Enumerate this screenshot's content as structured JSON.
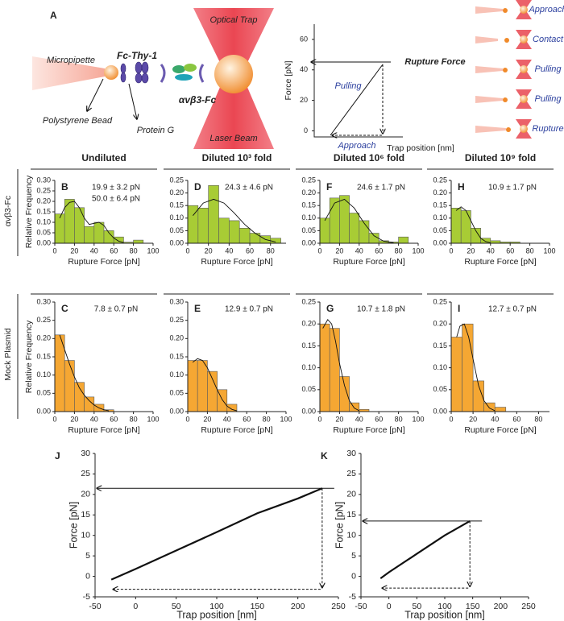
{
  "panel_a": {
    "label": "A",
    "micropipette": "Micropipette",
    "fc_thy": "Fc-Thy-1",
    "bead": "Polystyrene Bead",
    "protein_g": "Protein G",
    "integrin": "αvβ3-Fc",
    "trap": "Optical Trap",
    "laser": "Laser Beam",
    "plot": {
      "ylabel": "Force [pN]",
      "xlabel": "Trap position [nm]",
      "ylim": [
        -4,
        70
      ],
      "yticks": [
        0,
        20,
        40,
        60
      ],
      "rupture": "Rupture Force",
      "pulling": "Pulling",
      "approach": "Approach"
    },
    "steps": [
      "Approach",
      "Contact",
      "Pulling",
      "Pulling",
      "Rupture"
    ]
  },
  "column_headers": [
    "Undiluted",
    "Diluted 10³ fold",
    "Diluted 10⁶ fold",
    "Diluted 10⁹ fold"
  ],
  "row_labels": [
    "αvβ3-Fc",
    "Mock Plasmid"
  ],
  "chart_data": [
    {
      "type": "histogram",
      "label": "B",
      "annotations": [
        "19.9 ± 3.2 pN",
        "50.0 ± 6.4 pN"
      ],
      "color": "#a8cc35",
      "bins": [
        0,
        10,
        20,
        30,
        40,
        50,
        60,
        70,
        80,
        90
      ],
      "values": [
        0.14,
        0.21,
        0.17,
        0.08,
        0.1,
        0.06,
        0.03,
        0.005,
        0.015
      ],
      "fit": {
        "x": [
          5,
          10,
          15,
          20,
          25,
          30,
          35,
          40,
          45,
          50,
          55,
          60,
          65,
          70
        ],
        "y": [
          0.12,
          0.17,
          0.195,
          0.2,
          0.17,
          0.12,
          0.09,
          0.095,
          0.1,
          0.085,
          0.05,
          0.025,
          0.01,
          0.003
        ]
      },
      "xlim": [
        0,
        100
      ],
      "xticks": [
        0,
        20,
        40,
        60,
        80,
        100
      ],
      "ylim": [
        0,
        0.3
      ],
      "yticks": [
        {
          "value": 0,
          "label": "0.00"
        },
        0.05,
        {
          "value": 0.1,
          "label": "0.10"
        },
        0.15,
        {
          "value": 0.2,
          "label": "0.20"
        },
        0.25,
        {
          "value": 0.3,
          "label": "0.30"
        }
      ],
      "xlabel": "Rupture Force [pN]",
      "ylabel": "Relative Frequency"
    },
    {
      "type": "histogram",
      "label": "C",
      "annotations": [
        "7.8 ± 0.7 pN"
      ],
      "color": "#f5a733",
      "bins": [
        0,
        10,
        20,
        30,
        40,
        50,
        60
      ],
      "values": [
        0.21,
        0.14,
        0.08,
        0.04,
        0.02,
        0.005
      ],
      "fit": {
        "x": [
          5,
          10,
          15,
          20,
          25,
          30,
          35,
          40,
          45,
          50,
          55
        ],
        "y": [
          0.21,
          0.17,
          0.13,
          0.095,
          0.065,
          0.045,
          0.03,
          0.018,
          0.01,
          0.005,
          0.002
        ]
      },
      "xlim": [
        0,
        100
      ],
      "xticks": [
        0,
        20,
        40,
        60,
        80,
        100
      ],
      "ylim": [
        0,
        0.3
      ],
      "yticks": [
        {
          "value": 0,
          "label": "0.00"
        },
        0.05,
        {
          "value": 0.1,
          "label": "0.10"
        },
        0.15,
        {
          "value": 0.2,
          "label": "0.20"
        },
        0.25,
        {
          "value": 0.3,
          "label": "0.30"
        }
      ],
      "xlabel": "Rupture Force [pN]",
      "ylabel": "Relative Frequency"
    },
    {
      "type": "histogram",
      "label": "D",
      "annotations": [
        "24.3 ± 4.6 pN"
      ],
      "color": "#a8cc35",
      "bins": [
        0,
        10,
        20,
        30,
        40,
        50,
        60,
        70,
        80,
        90
      ],
      "values": [
        0.15,
        0.14,
        0.23,
        0.1,
        0.09,
        0.06,
        0.04,
        0.03,
        0.02
      ],
      "fit": {
        "x": [
          5,
          15,
          25,
          35,
          45,
          55,
          65,
          75,
          85
        ],
        "y": [
          0.11,
          0.16,
          0.175,
          0.16,
          0.12,
          0.075,
          0.04,
          0.015,
          0.005
        ]
      },
      "xlim": [
        0,
        95
      ],
      "xticks": [
        0,
        20,
        40,
        60,
        80
      ],
      "ylim": [
        0,
        0.25
      ],
      "yticks": [
        {
          "value": 0,
          "label": "0.00"
        },
        0.05,
        {
          "value": 0.1,
          "label": "0.10"
        },
        0.15,
        {
          "value": 0.2,
          "label": "0.20"
        },
        0.25
      ],
      "xlabel": "Rupture Force [pN]"
    },
    {
      "type": "histogram",
      "label": "E",
      "annotations": [
        "12.9 ± 0.7 pN"
      ],
      "color": "#f5a733",
      "bins": [
        0,
        10,
        20,
        30,
        40,
        50
      ],
      "values": [
        0.14,
        0.14,
        0.11,
        0.06,
        0.02
      ],
      "fit": {
        "x": [
          5,
          10,
          15,
          20,
          25,
          30,
          35,
          40,
          45,
          50
        ],
        "y": [
          0.135,
          0.145,
          0.14,
          0.12,
          0.09,
          0.06,
          0.033,
          0.015,
          0.006,
          0.002
        ]
      },
      "xlim": [
        0,
        100
      ],
      "xticks": [
        0,
        20,
        40,
        60,
        80,
        100
      ],
      "ylim": [
        0,
        0.3
      ],
      "yticks": [
        {
          "value": 0,
          "label": "0.00"
        },
        0.05,
        {
          "value": 0.1,
          "label": "0.10"
        },
        0.15,
        {
          "value": 0.2,
          "label": "0.20"
        },
        0.25,
        {
          "value": 0.3,
          "label": "0.30"
        }
      ],
      "xlabel": "Rupture Force [pN]"
    },
    {
      "type": "histogram",
      "label": "F",
      "annotations": [
        "24.6 ± 1.7 pN"
      ],
      "color": "#a8cc35",
      "bins": [
        0,
        10,
        20,
        30,
        40,
        50,
        60,
        70,
        80,
        90
      ],
      "values": [
        0.1,
        0.18,
        0.19,
        0.12,
        0.09,
        0.04,
        0.01,
        0.005,
        0.025
      ],
      "fit": {
        "x": [
          5,
          15,
          25,
          35,
          45,
          55,
          65,
          75
        ],
        "y": [
          0.09,
          0.16,
          0.175,
          0.14,
          0.08,
          0.03,
          0.008,
          0.002
        ]
      },
      "xlim": [
        0,
        100
      ],
      "xticks": [
        0,
        20,
        40,
        60,
        80,
        100
      ],
      "ylim": [
        0,
        0.25
      ],
      "yticks": [
        {
          "value": 0,
          "label": "0.00"
        },
        0.05,
        {
          "value": 0.1,
          "label": "0.10"
        },
        0.15,
        {
          "value": 0.2,
          "label": "0.20"
        },
        0.25
      ],
      "xlabel": "Rupture Force [pN]"
    },
    {
      "type": "histogram",
      "label": "G",
      "annotations": [
        "10.7 ± 1.8 pN"
      ],
      "color": "#f5a733",
      "bins": [
        0,
        10,
        20,
        30,
        40,
        50
      ],
      "values": [
        0.2,
        0.19,
        0.08,
        0.02,
        0.005
      ],
      "fit": {
        "x": [
          3,
          8,
          12,
          16,
          20,
          25,
          30,
          35,
          40
        ],
        "y": [
          0.19,
          0.21,
          0.2,
          0.16,
          0.11,
          0.06,
          0.025,
          0.008,
          0.002
        ]
      },
      "xlim": [
        0,
        100
      ],
      "xticks": [
        0,
        20,
        40,
        60,
        80,
        100
      ],
      "ylim": [
        0,
        0.25
      ],
      "yticks": [
        {
          "value": 0,
          "label": "0.00"
        },
        0.05,
        {
          "value": 0.1,
          "label": "0.10"
        },
        0.15,
        {
          "value": 0.2,
          "label": "0.20"
        },
        0.25
      ],
      "xlabel": "Rupture Force [pN]"
    },
    {
      "type": "histogram",
      "label": "H",
      "annotations": [
        "10.9 ± 1.7 pN"
      ],
      "color": "#a8cc35",
      "bins": [
        0,
        10,
        20,
        30,
        40,
        50,
        60,
        70
      ],
      "values": [
        0.14,
        0.13,
        0.06,
        0.02,
        0.01,
        0.005,
        0.005
      ],
      "fit": {
        "x": [
          5,
          10,
          15,
          20,
          25,
          30,
          35,
          40
        ],
        "y": [
          0.13,
          0.145,
          0.13,
          0.09,
          0.05,
          0.02,
          0.007,
          0.002
        ]
      },
      "xlim": [
        0,
        100
      ],
      "xticks": [
        0,
        20,
        40,
        60,
        80,
        100
      ],
      "ylim": [
        0,
        0.25
      ],
      "yticks": [
        {
          "value": 0,
          "label": "0.00"
        },
        0.05,
        {
          "value": 0.1,
          "label": "0.10"
        },
        0.15,
        {
          "value": 0.2,
          "label": "0.20"
        },
        0.25
      ],
      "xlabel": "Rupture Force [pN]"
    },
    {
      "type": "histogram",
      "label": "I",
      "annotations": [
        "12.7 ± 0.7 pN"
      ],
      "color": "#f5a733",
      "bins": [
        0,
        10,
        20,
        30,
        40,
        50
      ],
      "values": [
        0.17,
        0.2,
        0.07,
        0.02,
        0.01
      ],
      "fit": {
        "x": [
          5,
          8,
          12,
          16,
          20,
          25,
          30,
          35,
          40
        ],
        "y": [
          0.17,
          0.195,
          0.2,
          0.17,
          0.12,
          0.06,
          0.025,
          0.008,
          0.002
        ]
      },
      "xlim": [
        0,
        90
      ],
      "xticks": [
        0,
        20,
        40,
        60,
        80
      ],
      "ylim": [
        0,
        0.25
      ],
      "yticks": [
        {
          "value": 0,
          "label": "0.00"
        },
        0.05,
        {
          "value": 0.1,
          "label": "0.10"
        },
        0.15,
        {
          "value": 0.2,
          "label": "0.20"
        },
        0.25
      ],
      "xlabel": "Rupture Force [pN]"
    },
    {
      "type": "line",
      "label": "J",
      "color": "#111",
      "x": [
        -30,
        0,
        50,
        100,
        150,
        200,
        230
      ],
      "values": [
        -0.8,
        1.8,
        6.3,
        10.8,
        15.4,
        19.0,
        21.5
      ],
      "xlim": [
        -50,
        250
      ],
      "xticks": [
        -50,
        0,
        50,
        100,
        150,
        200,
        250
      ],
      "ylim": [
        -5,
        30
      ],
      "yticks": [
        -5,
        0,
        5,
        10,
        15,
        20,
        25,
        30
      ],
      "xlabel": "Trap position [nm]",
      "ylabel": "Force [pN]"
    },
    {
      "type": "line",
      "label": "K",
      "color": "#111",
      "x": [
        -15,
        0,
        50,
        100,
        145
      ],
      "values": [
        -0.5,
        1.0,
        5.5,
        10.0,
        13.5
      ],
      "xlim": [
        -50,
        250
      ],
      "xticks": [
        -50,
        0,
        50,
        100,
        150,
        200,
        250
      ],
      "ylim": [
        -5,
        30
      ],
      "yticks": [
        -5,
        0,
        5,
        10,
        15,
        20,
        25,
        30
      ],
      "xlabel": "Trap position [nm]",
      "ylabel": "Force [pN]"
    }
  ]
}
